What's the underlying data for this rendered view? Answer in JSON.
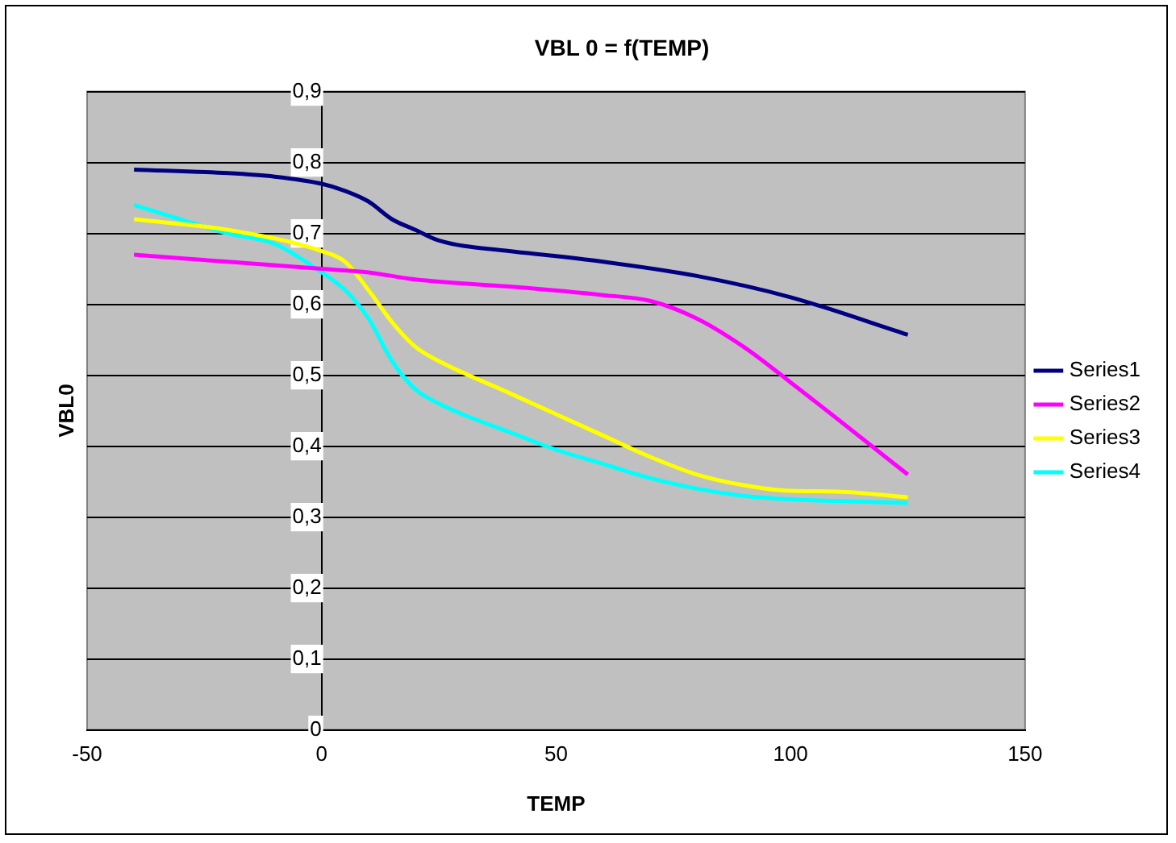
{
  "chart_data": {
    "type": "line",
    "title": "VBL 0 = f(TEMP)",
    "xlabel": "TEMP",
    "ylabel": "VBL0",
    "xlim": [
      -50,
      150
    ],
    "xticks": [
      -50,
      0,
      50,
      100,
      150
    ],
    "ylim": [
      0,
      0.9
    ],
    "yticks": [
      0,
      {
        "value": 0.1,
        "label": "0,1"
      },
      {
        "value": 0.2,
        "label": "0,2"
      },
      {
        "value": 0.3,
        "label": "0,3"
      },
      {
        "value": 0.4,
        "label": "0,4"
      },
      {
        "value": 0.5,
        "label": "0,5"
      },
      {
        "value": 0.6,
        "label": "0,6"
      },
      {
        "value": 0.7,
        "label": "0,7"
      },
      {
        "value": 0.8,
        "label": "0,8"
      },
      {
        "value": 0.9,
        "label": "0,9"
      }
    ],
    "grid": "y",
    "legend": "right",
    "marker": "none",
    "line_style": "solid",
    "series": [
      {
        "name": "Series1",
        "color": "#000080",
        "x": [
          -40,
          -20,
          -10,
          0,
          5,
          10,
          15,
          20,
          25,
          40,
          50,
          60,
          80,
          100,
          125
        ],
        "values": [
          0.79,
          0.785,
          0.78,
          0.77,
          0.76,
          0.745,
          0.72,
          0.705,
          0.69,
          0.675,
          0.668,
          0.66,
          0.64,
          0.61,
          0.557
        ]
      },
      {
        "name": "Series2",
        "color": "#ff00ff",
        "x": [
          -40,
          -20,
          0,
          10,
          20,
          40,
          60,
          70,
          80,
          90,
          100,
          125
        ],
        "values": [
          0.67,
          0.66,
          0.65,
          0.645,
          0.635,
          0.625,
          0.613,
          0.605,
          0.58,
          0.54,
          0.49,
          0.36
        ]
      },
      {
        "name": "Series3",
        "color": "#ffff00",
        "x": [
          -40,
          -20,
          0,
          5,
          10,
          15,
          20,
          25,
          40,
          50,
          60,
          70,
          80,
          90,
          100,
          110,
          125
        ],
        "values": [
          0.72,
          0.705,
          0.675,
          0.66,
          0.62,
          0.575,
          0.54,
          0.52,
          0.475,
          0.445,
          0.415,
          0.385,
          0.36,
          0.345,
          0.337,
          0.336,
          0.328
        ]
      },
      {
        "name": "Series4",
        "color": "#00ffff",
        "x": [
          -40,
          -20,
          -10,
          0,
          5,
          10,
          15,
          20,
          25,
          30,
          40,
          50,
          60,
          70,
          80,
          90,
          100,
          125
        ],
        "values": [
          0.74,
          0.7,
          0.685,
          0.645,
          0.62,
          0.58,
          0.52,
          0.48,
          0.46,
          0.445,
          0.42,
          0.395,
          0.375,
          0.355,
          0.34,
          0.33,
          0.325,
          0.32
        ]
      }
    ]
  }
}
